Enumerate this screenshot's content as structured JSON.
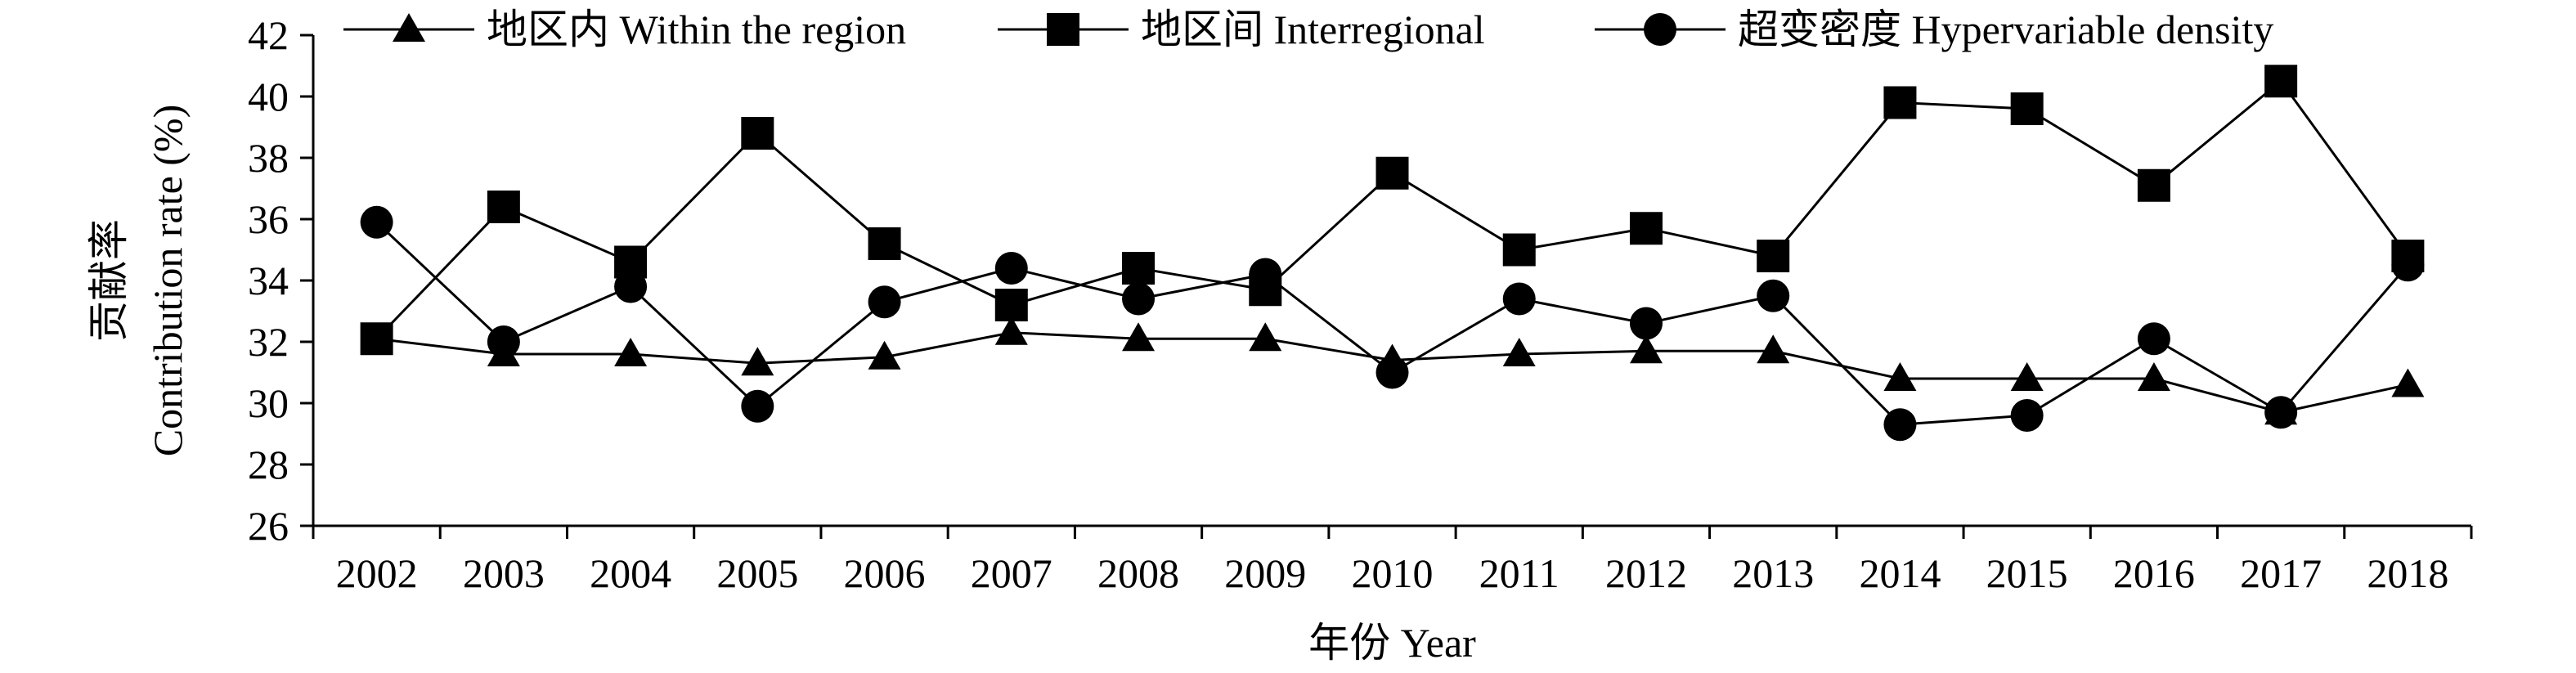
{
  "chart_data": {
    "type": "line",
    "title": "",
    "xlabel": "年份 Year",
    "ylabel": [
      "贡献率",
      "Contribution rate (%)"
    ],
    "categories": [
      "2002",
      "2003",
      "2004",
      "2005",
      "2006",
      "2007",
      "2008",
      "2009",
      "2010",
      "2011",
      "2012",
      "2013",
      "2014",
      "2015",
      "2016",
      "2017",
      "2018"
    ],
    "ylim": [
      26,
      42
    ],
    "yticks": [
      26,
      28,
      30,
      32,
      34,
      36,
      38,
      40,
      42
    ],
    "grid": false,
    "legend_position": "top",
    "series": [
      {
        "name": "地区内 Within the region",
        "marker": "triangle",
        "values": [
          32.1,
          31.6,
          31.6,
          31.3,
          31.5,
          32.3,
          32.1,
          32.1,
          31.4,
          31.6,
          31.7,
          31.7,
          30.8,
          30.8,
          30.8,
          29.7,
          30.6
        ]
      },
      {
        "name": "地区间 Interregional",
        "marker": "square",
        "values": [
          32.1,
          36.4,
          34.6,
          38.8,
          35.2,
          33.2,
          34.4,
          33.7,
          37.5,
          35.0,
          35.7,
          34.8,
          39.8,
          39.6,
          37.1,
          40.5,
          34.8
        ]
      },
      {
        "name": "超变密度 Hypervariable density",
        "marker": "circle",
        "values": [
          35.9,
          32.0,
          33.8,
          29.9,
          33.3,
          34.4,
          33.4,
          34.2,
          31.0,
          33.4,
          32.6,
          33.5,
          29.3,
          29.6,
          32.1,
          29.7,
          34.5
        ]
      }
    ],
    "colors": {
      "line": "#000000",
      "marker": "#000000"
    }
  }
}
